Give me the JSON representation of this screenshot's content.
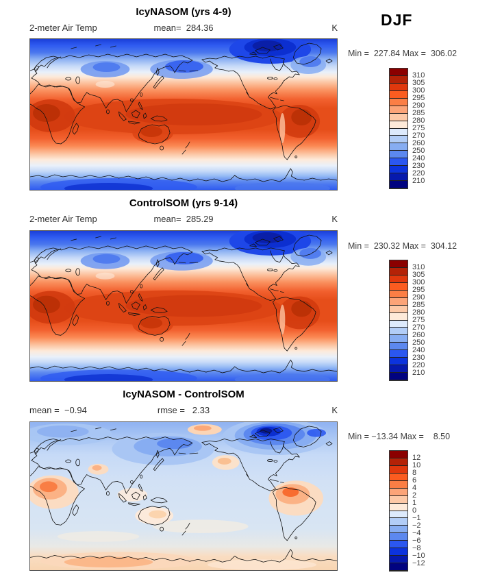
{
  "season_label": "DJF",
  "figure": {
    "variable": "2-meter Air Temp",
    "units": "K",
    "projection": "global latitude-longitude, Pacific-centered"
  },
  "colorbar_palette_top_to_bottom": [
    "#8b0000",
    "#b42207",
    "#e0380d",
    "#fb5c20",
    "#fb7e45",
    "#fca478",
    "#fdc9a7",
    "#feead9",
    "#ddeafc",
    "#b2cdf7",
    "#87adf2",
    "#5c88ef",
    "#2b57f0",
    "#0c33dd",
    "#0619ad",
    "#010380"
  ],
  "chart_data": [
    {
      "type": "heatmap",
      "panel": "top",
      "title": "IcyNASOM (yrs 4-9)",
      "left_text": "2-meter Air Temp",
      "center_text": "mean=  284.36",
      "units": "K",
      "season": "DJF",
      "mean": 284.36,
      "min": 227.84,
      "max": 306.02,
      "minmax_text": "Min =  227.84 Max =  306.02",
      "levels": [
        210,
        220,
        230,
        240,
        250,
        260,
        270,
        275,
        280,
        285,
        290,
        295,
        300,
        305,
        310
      ],
      "tick_labels_top_to_bottom": [
        "310",
        "305",
        "300",
        "295",
        "290",
        "285",
        "280",
        "275",
        "270",
        "260",
        "250",
        "240",
        "230",
        "220",
        "210"
      ]
    },
    {
      "type": "heatmap",
      "panel": "middle",
      "title": "ControlSOM (yrs 9-14)",
      "left_text": "2-meter Air Temp",
      "center_text": "mean=  285.29",
      "units": "K",
      "season": "DJF",
      "mean": 285.29,
      "min": 230.32,
      "max": 304.12,
      "minmax_text": "Min =  230.32 Max =  304.12",
      "levels": [
        210,
        220,
        230,
        240,
        250,
        260,
        270,
        275,
        280,
        285,
        290,
        295,
        300,
        305,
        310
      ],
      "tick_labels_top_to_bottom": [
        "310",
        "305",
        "300",
        "295",
        "290",
        "285",
        "280",
        "275",
        "270",
        "260",
        "250",
        "240",
        "230",
        "220",
        "210"
      ]
    },
    {
      "type": "heatmap",
      "panel": "bottom",
      "title": "IcyNASOM - ControlSOM",
      "left_text": "mean =  −0.94",
      "center_text": "rmse =   2.33",
      "units": "K",
      "season": "DJF",
      "mean": -0.94,
      "rmse": 2.33,
      "min": -13.34,
      "max": 8.5,
      "minmax_text": "Min = −13.34 Max =    8.50",
      "levels": [
        -12,
        -10,
        -8,
        -6,
        -4,
        -2,
        -1,
        0,
        1,
        2,
        4,
        6,
        8,
        10,
        12
      ],
      "tick_labels_top_to_bottom": [
        "12",
        "10",
        "8",
        "6",
        "4",
        "2",
        "1",
        "0",
        "−1",
        "−2",
        "−4",
        "−6",
        "−8",
        "−10",
        "−12"
      ]
    }
  ]
}
